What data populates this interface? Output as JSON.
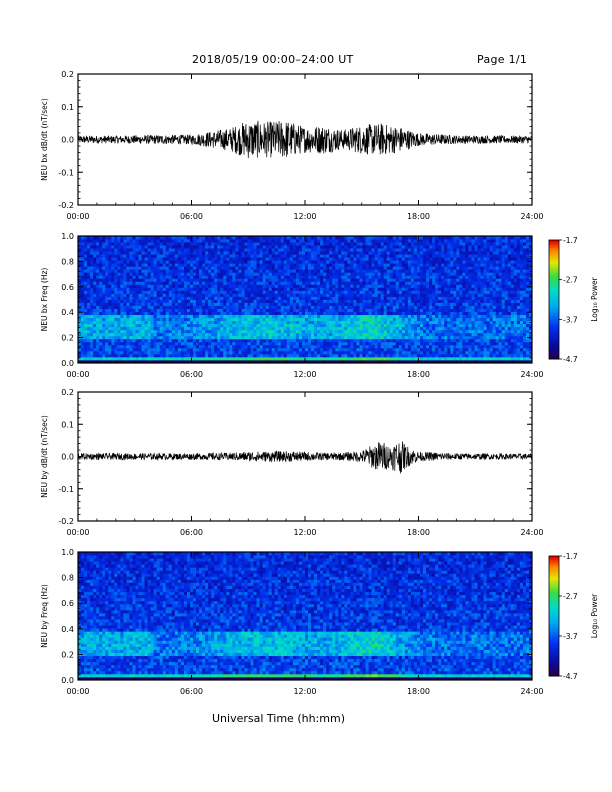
{
  "header": {
    "title": "2018/05/19  00:00–24:00 UT",
    "page": "Page 1/1"
  },
  "xaxis": {
    "label": "Universal Time (hh:mm)",
    "ticks": [
      "00:00",
      "06:00",
      "12:00",
      "18:00",
      "24:00"
    ]
  },
  "colorbar": {
    "label": "Log₁₀ Power",
    "ticks": [
      "-1.7",
      "-2.7",
      "-3.7",
      "-4.7"
    ],
    "range": [
      -4.7,
      -1.7
    ]
  },
  "chart_data": [
    {
      "type": "line",
      "ylabel": "NEU bx dB/dt (nT/sec)",
      "yticks": [
        "0.2",
        "0.1",
        "0.0",
        "-0.1",
        "-0.2"
      ],
      "ylim": [
        -0.2,
        0.2
      ],
      "xlim": [
        0,
        24
      ],
      "envelope_hours": [
        0,
        2,
        4,
        6,
        7,
        8,
        9,
        10,
        11,
        12,
        13,
        14,
        15,
        16,
        17,
        18,
        20,
        22,
        24
      ],
      "envelope_amplitude": [
        0.012,
        0.012,
        0.014,
        0.015,
        0.025,
        0.035,
        0.06,
        0.055,
        0.06,
        0.04,
        0.045,
        0.03,
        0.045,
        0.05,
        0.04,
        0.02,
        0.013,
        0.012,
        0.012
      ]
    },
    {
      "type": "heatmap",
      "ylabel": "NEU bx Freq (Hz)",
      "yticks": [
        "1.0",
        "0.8",
        "0.6",
        "0.4",
        "0.2",
        "0.0"
      ],
      "ylim": [
        0,
        1
      ],
      "xlim": [
        0,
        24
      ],
      "zlim": [
        -4.7,
        -1.7
      ]
    },
    {
      "type": "line",
      "ylabel": "NEU by dB/dt (nT/sec)",
      "yticks": [
        "0.2",
        "0.1",
        "0.0",
        "-0.1",
        "-0.2"
      ],
      "ylim": [
        -0.2,
        0.2
      ],
      "xlim": [
        0,
        24
      ],
      "envelope_hours": [
        0,
        2,
        4,
        6,
        8,
        9,
        10,
        11,
        12,
        13,
        14,
        15,
        15.5,
        16,
        16.5,
        17,
        17.5,
        18,
        20,
        22,
        24
      ],
      "envelope_amplitude": [
        0.01,
        0.01,
        0.01,
        0.01,
        0.012,
        0.015,
        0.016,
        0.017,
        0.014,
        0.012,
        0.012,
        0.018,
        0.035,
        0.05,
        0.035,
        0.055,
        0.03,
        0.015,
        0.01,
        0.009,
        0.009
      ]
    },
    {
      "type": "heatmap",
      "ylabel": "NEU by Freq (Hz)",
      "yticks": [
        "1.0",
        "0.8",
        "0.6",
        "0.4",
        "0.2",
        "0.0"
      ],
      "ylim": [
        0,
        1
      ],
      "xlim": [
        0,
        24
      ],
      "zlim": [
        -4.7,
        -1.7
      ]
    }
  ]
}
